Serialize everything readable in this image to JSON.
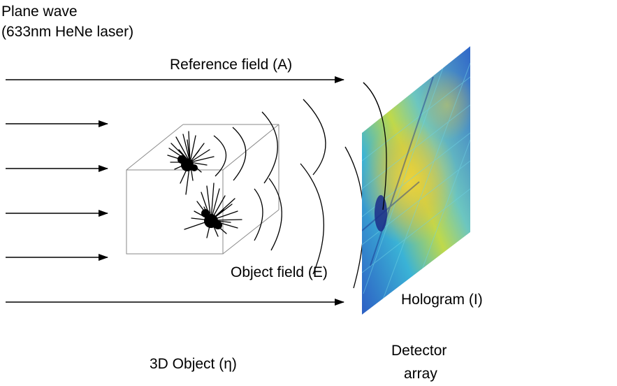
{
  "labels": {
    "source_line1": "Plane wave",
    "source_line2": "(633nm HeNe laser)",
    "reference_field": "Reference field (A)",
    "object_field": "Object field (E)",
    "hologram": "Hologram (I)",
    "object": "3D Object (η)",
    "detector_line1": "Detector",
    "detector_line2": "array"
  },
  "colors": {
    "line": "#000000",
    "box": "#8a8a8a",
    "hologram_base": "#2f63c8",
    "hologram_cyan": "#39b9d8",
    "hologram_yellow": "#e9d83a",
    "hologram_dark": "#1a2d8a"
  }
}
